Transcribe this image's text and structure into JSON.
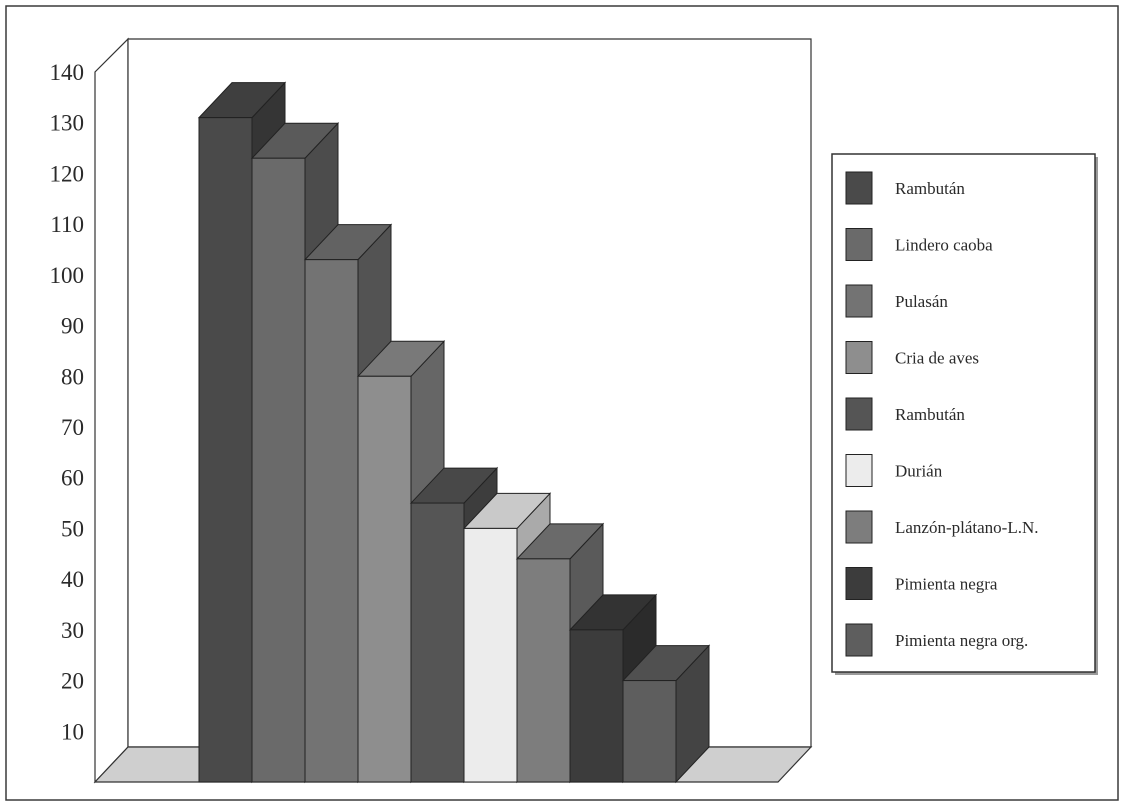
{
  "chart_data": {
    "type": "bar",
    "style": "3d-column",
    "title": "",
    "xlabel": "",
    "ylabel": "",
    "ylim": [
      0,
      140
    ],
    "y_ticks": [
      10,
      20,
      30,
      40,
      50,
      60,
      70,
      80,
      90,
      100,
      110,
      120,
      130,
      140
    ],
    "grid": false,
    "legend_position": "right",
    "series": [
      {
        "name": "Rambután",
        "value": 131,
        "color": "#4a4a4a"
      },
      {
        "name": "Lindero caoba",
        "value": 123,
        "color": "#6a6a6a"
      },
      {
        "name": "Pulasán",
        "value": 103,
        "color": "#737373"
      },
      {
        "name": "Cria de aves",
        "value": 80,
        "color": "#8e8e8e"
      },
      {
        "name": "Rambután",
        "value": 55,
        "color": "#555555"
      },
      {
        "name": "Durián",
        "value": 50,
        "color": "#ececec"
      },
      {
        "name": "Lanzón-plátano-L.N.",
        "value": 44,
        "color": "#7d7d7d"
      },
      {
        "name": "Pimienta negra",
        "value": 30,
        "color": "#3c3c3c"
      },
      {
        "name": "Pimienta negra org.",
        "value": 20,
        "color": "#5e5e5e"
      }
    ]
  }
}
